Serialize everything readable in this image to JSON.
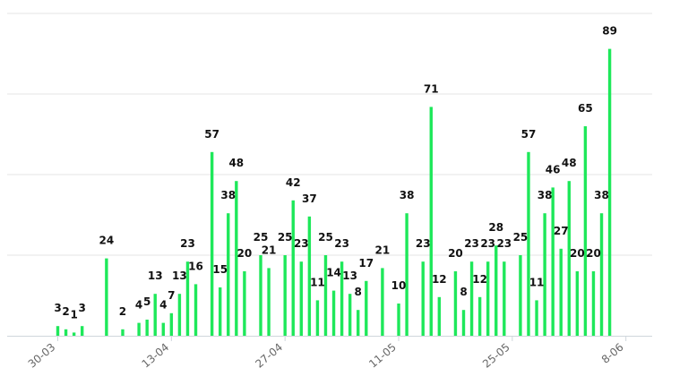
{
  "chart_data": {
    "type": "bar",
    "title": "",
    "xlabel": "",
    "ylabel": "",
    "ylim": [
      0,
      100
    ],
    "grid": true,
    "color": "#1ee85a",
    "x_tick_labels": [
      "30-03",
      "13-04",
      "27-04",
      "11-05",
      "25-05",
      "8-06"
    ],
    "tick_day_index": [
      0,
      14,
      28,
      42,
      56,
      70
    ],
    "series": [
      {
        "start_date": "2020-03-30",
        "values": [
          3,
          2,
          1,
          3,
          null,
          null,
          24,
          null,
          2,
          null,
          4,
          5,
          13,
          4,
          7,
          13,
          23,
          16,
          0,
          57,
          15,
          38,
          48,
          20,
          0,
          25,
          21,
          0,
          25,
          42,
          23,
          37,
          11,
          25,
          14,
          23,
          13,
          8,
          17,
          0,
          21,
          0,
          10,
          38,
          0,
          23,
          71,
          12,
          0,
          20,
          8,
          23,
          12,
          23,
          28,
          23,
          0,
          25,
          57,
          11,
          38,
          46,
          27,
          48,
          20,
          65,
          20,
          38,
          89
        ],
        "labels": [
          "3",
          "2",
          "1",
          "3",
          "",
          "",
          "24",
          "",
          "2",
          "",
          "4",
          "5",
          "13",
          "4",
          "7",
          "13",
          "23",
          "16",
          "",
          "57",
          "15",
          "38",
          "48",
          "20",
          "",
          "25",
          "21",
          "",
          "25",
          "42",
          "23",
          "37",
          "11",
          "25",
          "14",
          "23",
          "13",
          "8",
          "17",
          "",
          "21",
          "",
          "10",
          "38",
          "",
          "23",
          "71",
          "12",
          "",
          "20",
          "8",
          "23",
          "12",
          "23",
          "28",
          "23",
          "",
          "25",
          "57",
          "11",
          "38",
          "46",
          "27",
          "48",
          "20",
          "65",
          "20",
          "38",
          "89"
        ]
      }
    ]
  }
}
